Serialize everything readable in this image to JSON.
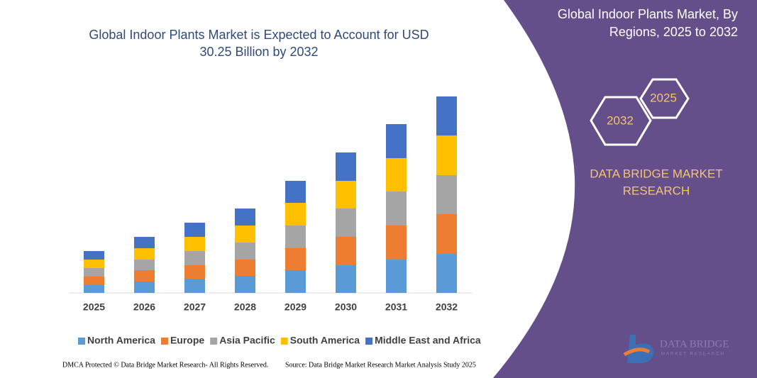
{
  "chart_data": {
    "type": "stacked-bar",
    "title": [
      "Global Indoor Plants Market is Expected to Account for USD",
      "30.25 Billion by 2032"
    ],
    "categories": [
      "2025",
      "2026",
      "2027",
      "2028",
      "2029",
      "2030",
      "2031",
      "2032"
    ],
    "series": [
      {
        "name": "North America",
        "color": "#5b9bd5",
        "values": [
          11,
          16,
          20,
          24,
          32,
          39,
          47,
          55
        ]
      },
      {
        "name": "Europe",
        "color": "#ed7d31",
        "values": [
          12,
          16,
          19,
          23,
          31,
          40,
          48,
          56
        ]
      },
      {
        "name": "Asia Pacific",
        "color": "#a5a5a5",
        "values": [
          12,
          15,
          20,
          24,
          32,
          40,
          48,
          55
        ]
      },
      {
        "name": "South America",
        "color": "#ffc000",
        "values": [
          12,
          16,
          20,
          24,
          32,
          39,
          47,
          56
        ]
      },
      {
        "name": "Middle East and Africa",
        "color": "#4472c4",
        "values": [
          12,
          16,
          20,
          24,
          31,
          40,
          48,
          55
        ]
      }
    ],
    "ylim": [
      0,
      300
    ]
  },
  "panel": {
    "title": [
      "Global Indoor Plants Market, By",
      "Regions, 2025 to 2032"
    ],
    "hex_back": "2025",
    "hex_front": "2032",
    "brand": [
      "DATA BRIDGE MARKET",
      "RESEARCH"
    ]
  },
  "logo": {
    "name": "DATA BRIDGE",
    "tagline": "MARKET RESEARCH"
  },
  "footer": {
    "left": "DMCA Protected © Data Bridge Market Research- All Rights Reserved.",
    "right": "Source: Data Bridge Market Research Market Analysis Study 2025"
  }
}
